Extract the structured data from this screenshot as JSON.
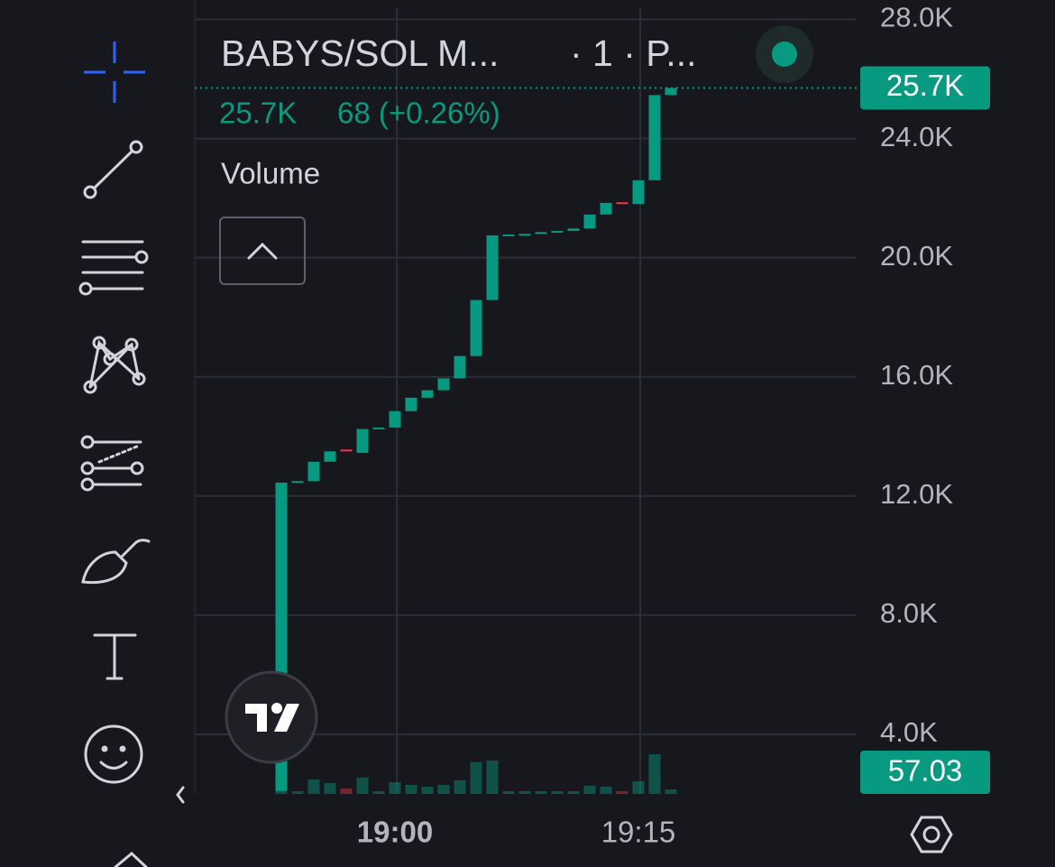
{
  "header": {
    "title": "BABYS/SOL M...",
    "interval": "· 1 · P...",
    "legend_price": "25.7K",
    "legend_change": "68 (+0.26%)",
    "volume_label": "Volume"
  },
  "chart_data": {
    "type": "candlestick",
    "categories": [
      null,
      null,
      null,
      null,
      null,
      null,
      null,
      "19:00",
      null,
      null,
      null,
      null,
      null,
      null,
      null,
      null,
      null,
      null,
      null,
      null,
      null,
      null,
      "19:15",
      null,
      null
    ],
    "open": [
      2100,
      12450,
      12500,
      13150,
      13560,
      13450,
      14250,
      14300,
      14850,
      15300,
      15550,
      15950,
      16700,
      18580,
      20750,
      20780,
      20800,
      20860,
      20900,
      20980,
      21450,
      21860,
      21800,
      22600,
      25460
    ],
    "close": [
      12450,
      12500,
      13150,
      13500,
      13520,
      14250,
      14300,
      14850,
      15300,
      15550,
      15950,
      16700,
      18580,
      20750,
      20780,
      20800,
      20860,
      20900,
      20980,
      21450,
      21840,
      21820,
      22600,
      25460,
      25700
    ],
    "volume": [
      400,
      34,
      182,
      137,
      68,
      205,
      34,
      148,
      114,
      91,
      114,
      171,
      400,
      420,
      34,
      34,
      34,
      34,
      34,
      103,
      91,
      34,
      160,
      500,
      57.03
    ],
    "up_color": "#089981",
    "down_color": "#f23645",
    "ylim": [
      2000,
      28500
    ],
    "yticks": [
      {
        "value": 28000,
        "label": "28.0K"
      },
      {
        "value": 24000,
        "label": "24.0K"
      },
      {
        "value": 20000,
        "label": "20.0K"
      },
      {
        "value": 16000,
        "label": "16.0K"
      },
      {
        "value": 12000,
        "label": "12.0K"
      },
      {
        "value": 8000,
        "label": "8.0K"
      },
      {
        "value": 4000,
        "label": "4.0K"
      }
    ],
    "volume_lim": [
      0,
      1000
    ],
    "last_price": {
      "value": 25700,
      "label": "25.7K"
    },
    "grid": true
  }
}
